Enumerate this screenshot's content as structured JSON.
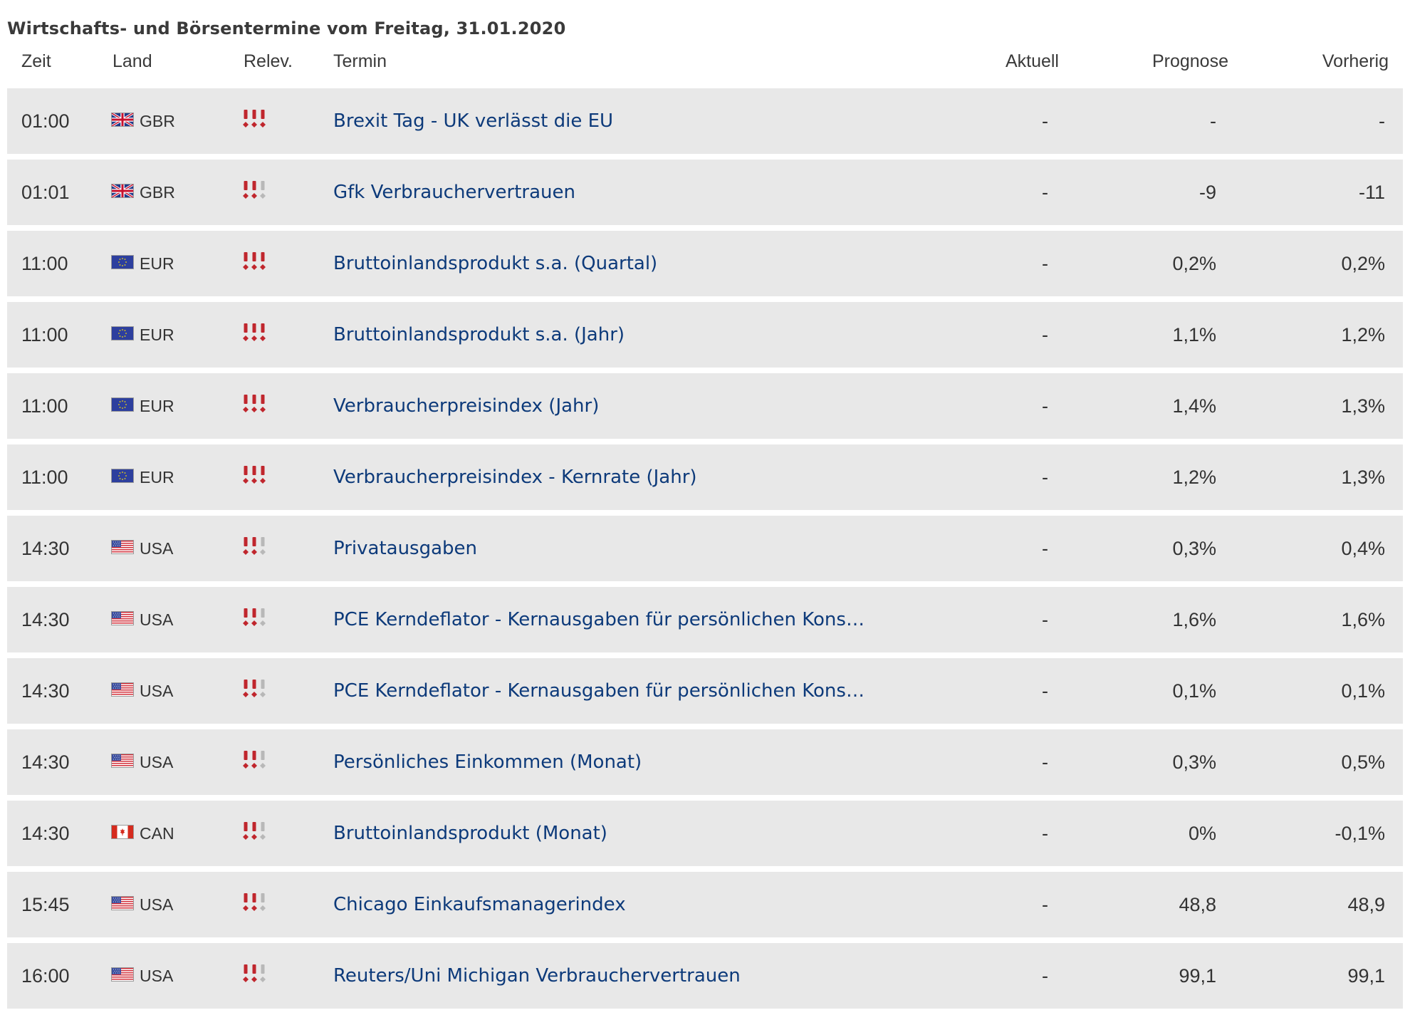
{
  "title": "Wirtschafts- und Börsentermine vom Freitag, 31.01.2020",
  "headers": {
    "zeit": "Zeit",
    "land": "Land",
    "relev": "Relev.",
    "termin": "Termin",
    "aktuell": "Aktuell",
    "prognose": "Prognose",
    "vorherig": "Vorherig"
  },
  "colors": {
    "link": "#0d3a7a",
    "row_bg": "#e8e8e8",
    "relevance_active": "#c0262d",
    "relevance_inactive": "#b8b8b8"
  },
  "rows": [
    {
      "zeit": "01:00",
      "flag": "uk-flag-icon",
      "land": "GBR",
      "relevance": 3,
      "termin": "Brexit Tag - UK verlässt die EU",
      "aktuell": "-",
      "prognose": "-",
      "vorherig": "-"
    },
    {
      "zeit": "01:01",
      "flag": "uk-flag-icon",
      "land": "GBR",
      "relevance": 2,
      "termin": "Gfk Verbrauchervertrauen",
      "aktuell": "-",
      "prognose": "-9",
      "vorherig": "-11"
    },
    {
      "zeit": "11:00",
      "flag": "eu-flag-icon",
      "land": "EUR",
      "relevance": 3,
      "termin": "Bruttoinlandsprodukt s.a. (Quartal)",
      "aktuell": "-",
      "prognose": "0,2%",
      "vorherig": "0,2%"
    },
    {
      "zeit": "11:00",
      "flag": "eu-flag-icon",
      "land": "EUR",
      "relevance": 3,
      "termin": "Bruttoinlandsprodukt s.a. (Jahr)",
      "aktuell": "-",
      "prognose": "1,1%",
      "vorherig": "1,2%"
    },
    {
      "zeit": "11:00",
      "flag": "eu-flag-icon",
      "land": "EUR",
      "relevance": 3,
      "termin": "Verbraucherpreisindex (Jahr)",
      "aktuell": "-",
      "prognose": "1,4%",
      "vorherig": "1,3%"
    },
    {
      "zeit": "11:00",
      "flag": "eu-flag-icon",
      "land": "EUR",
      "relevance": 3,
      "termin": "Verbraucherpreisindex - Kernrate (Jahr)",
      "aktuell": "-",
      "prognose": "1,2%",
      "vorherig": "1,3%"
    },
    {
      "zeit": "14:30",
      "flag": "us-flag-icon",
      "land": "USA",
      "relevance": 2,
      "termin": "Privatausgaben",
      "aktuell": "-",
      "prognose": "0,3%",
      "vorherig": "0,4%"
    },
    {
      "zeit": "14:30",
      "flag": "us-flag-icon",
      "land": "USA",
      "relevance": 2,
      "termin": "PCE Kerndeflator - Kernausgaben für persönlichen Kons…",
      "aktuell": "-",
      "prognose": "1,6%",
      "vorherig": "1,6%"
    },
    {
      "zeit": "14:30",
      "flag": "us-flag-icon",
      "land": "USA",
      "relevance": 2,
      "termin": "PCE Kerndeflator - Kernausgaben für persönlichen Kons…",
      "aktuell": "-",
      "prognose": "0,1%",
      "vorherig": "0,1%"
    },
    {
      "zeit": "14:30",
      "flag": "us-flag-icon",
      "land": "USA",
      "relevance": 2,
      "termin": "Persönliches Einkommen (Monat)",
      "aktuell": "-",
      "prognose": "0,3%",
      "vorherig": "0,5%"
    },
    {
      "zeit": "14:30",
      "flag": "ca-flag-icon",
      "land": "CAN",
      "relevance": 2,
      "termin": "Bruttoinlandsprodukt (Monat)",
      "aktuell": "-",
      "prognose": "0%",
      "vorherig": "-0,1%"
    },
    {
      "zeit": "15:45",
      "flag": "us-flag-icon",
      "land": "USA",
      "relevance": 2,
      "termin": "Chicago Einkaufsmanagerindex",
      "aktuell": "-",
      "prognose": "48,8",
      "vorherig": "48,9"
    },
    {
      "zeit": "16:00",
      "flag": "us-flag-icon",
      "land": "USA",
      "relevance": 2,
      "termin": "Reuters/Uni Michigan Verbrauchervertrauen",
      "aktuell": "-",
      "prognose": "99,1",
      "vorherig": "99,1"
    }
  ]
}
